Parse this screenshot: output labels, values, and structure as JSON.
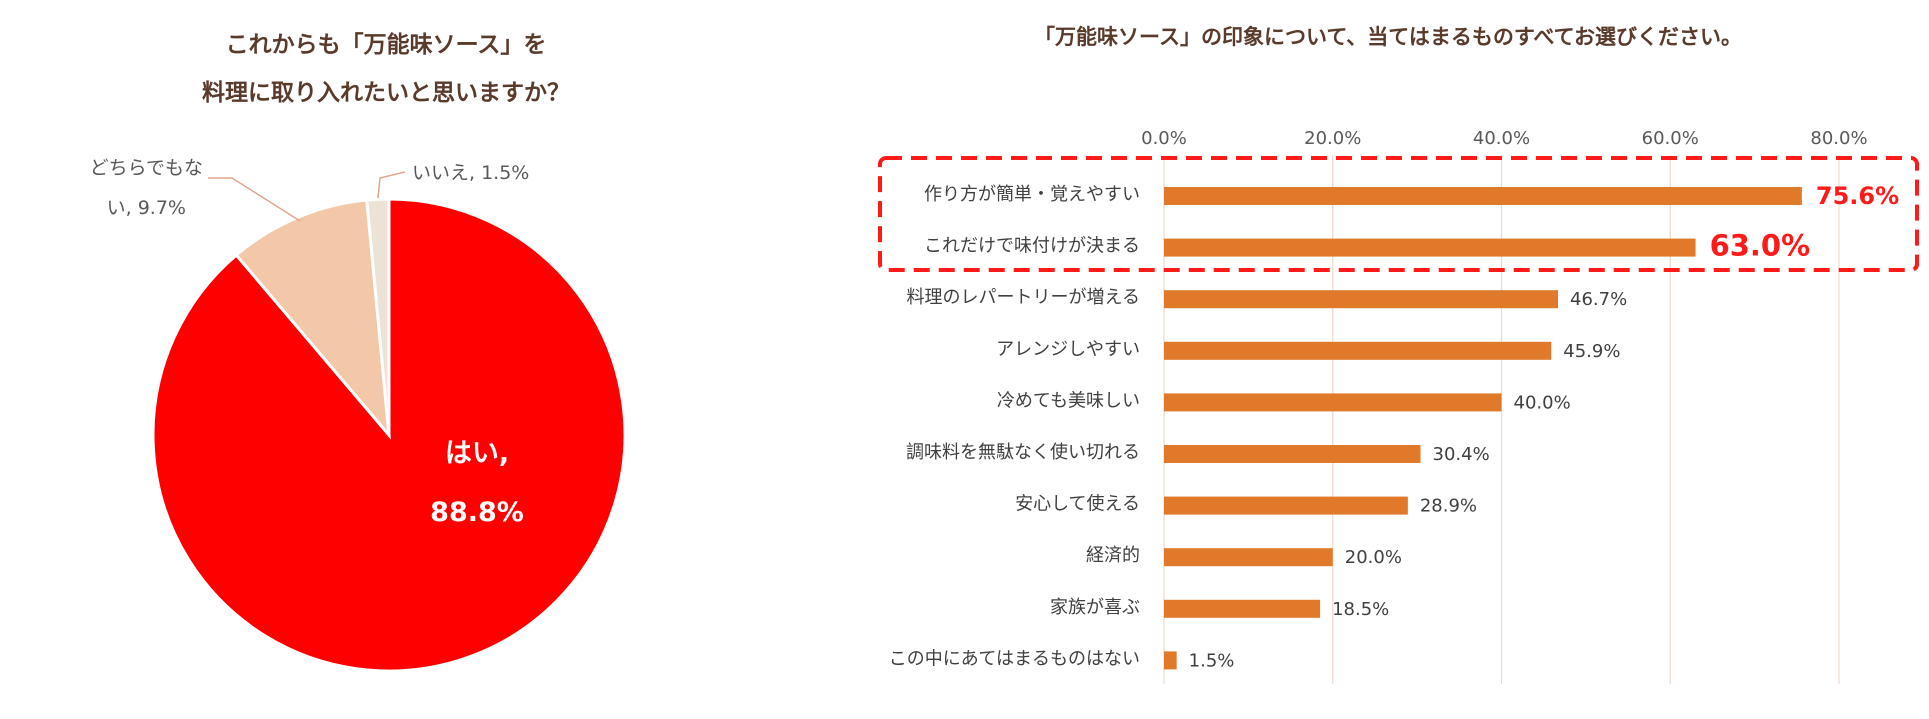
{
  "chart_data": [
    {
      "type": "pie",
      "title_lines": [
        "これからも「万能味ソース」を",
        "料理に取り入れたいと思いますか？"
      ],
      "slices": [
        {
          "name": "はい",
          "value": 88.8,
          "label_name": "はい,",
          "label_value": "88.8%",
          "color": "#ff0000"
        },
        {
          "name": "どちらでもない",
          "value": 9.7,
          "label_line1": "どちらでもな",
          "label_line2": "い, 9.7%",
          "color": "#f2c8a8"
        },
        {
          "name": "いいえ",
          "value": 1.5,
          "label": "いいえ, 1.5%",
          "color": "#ece2d6"
        }
      ],
      "leader_color": "#e0a78f"
    },
    {
      "type": "bar",
      "orientation": "horizontal",
      "title": "「万能味ソース」の印象について、当てはまるものすべてお選びください。",
      "categories": [
        "作り方が簡単・覚えやすい",
        "これだけで味付けが決まる",
        "料理のレパートリーが増える",
        "アレンジしやすい",
        "冷めても美味しい",
        "調味料を無駄なく使い切れる",
        "安心して使える",
        "経済的",
        "家族が喜ぶ",
        "この中にあてはまるものはない"
      ],
      "values": [
        75.6,
        63.0,
        46.7,
        45.9,
        40.0,
        30.4,
        28.9,
        20.0,
        18.5,
        1.5
      ],
      "value_labels": [
        "75.6%",
        "63.0%",
        "46.7%",
        "45.9%",
        "40.0%",
        "30.4%",
        "28.9%",
        "20.0%",
        "18.5%",
        "1.5%"
      ],
      "highlight_count": 2,
      "xlim": [
        0,
        80
      ],
      "xticks": [
        0,
        20,
        40,
        60,
        80
      ],
      "xtick_labels": [
        "0.0%",
        "20.0%",
        "40.0%",
        "60.0%",
        "80.0%"
      ],
      "xlabel": "",
      "ylabel": "",
      "grid": true,
      "bar_color": "#e07a2a",
      "highlight_color": "#ff1a1a"
    }
  ]
}
